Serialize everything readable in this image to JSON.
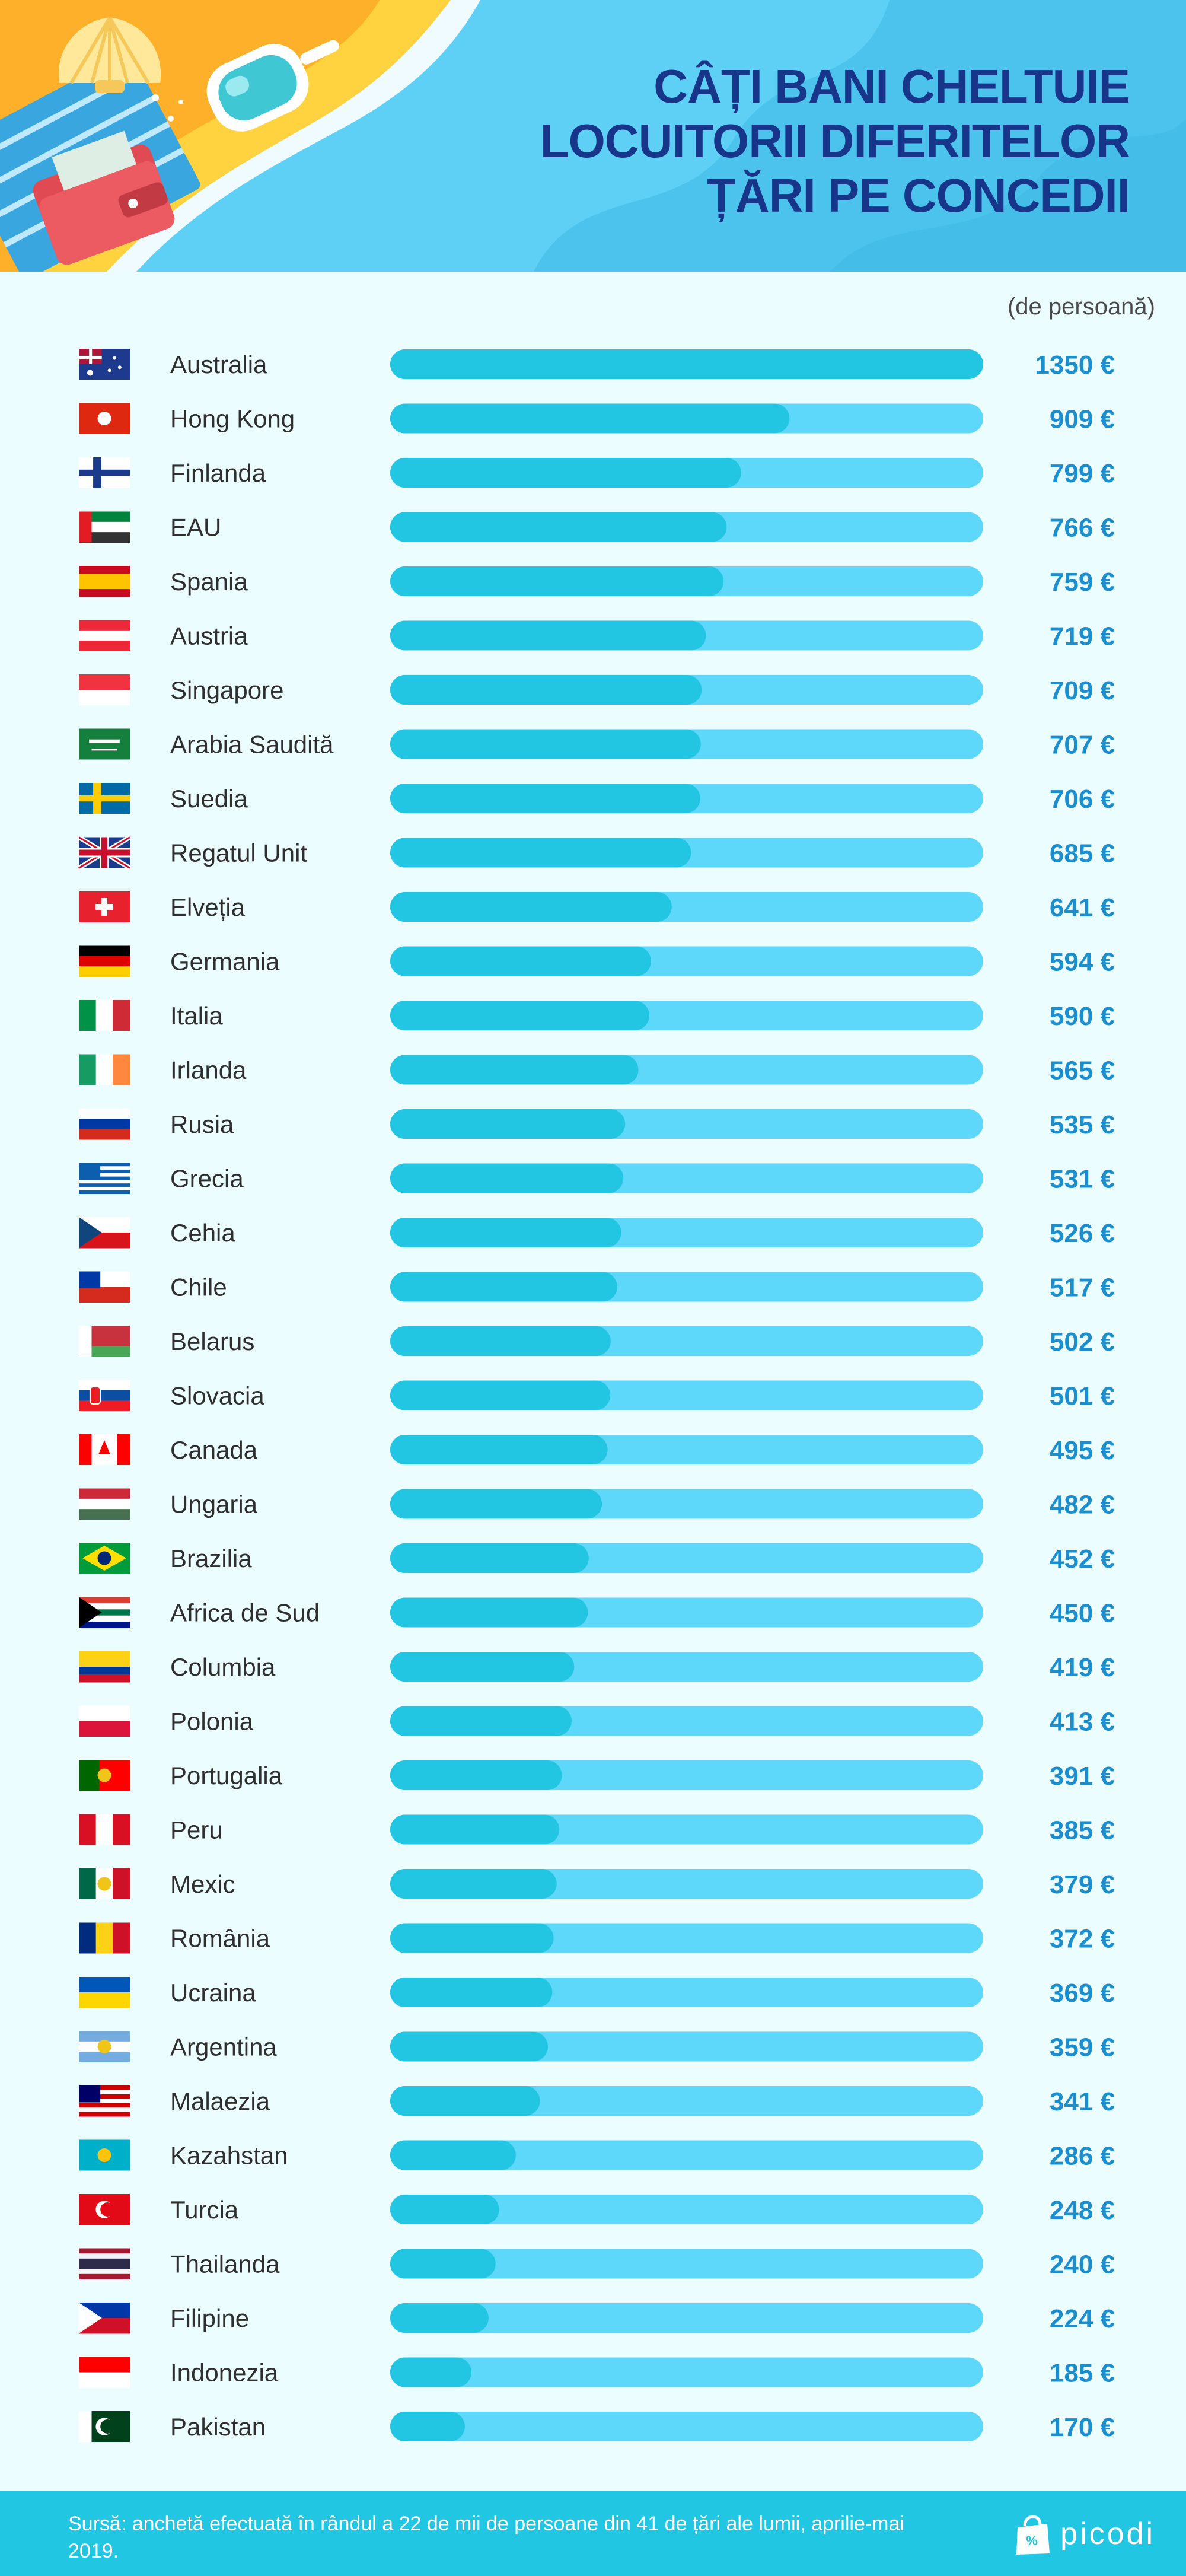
{
  "header": {
    "title_lines": [
      "CÂȚI BANI CHELTUIE",
      "LOCUITORII DIFERITELOR",
      "ȚĂRI PE CONCEDII"
    ]
  },
  "unit_label": "(de persoană)",
  "colors": {
    "bar_fill": "#23c6e2",
    "bar_track": "#5dd8fb",
    "value_text": "#1b8ed0",
    "label_text": "#2f2f2f",
    "title_text": "#17368a",
    "footer_bg": "#21c6e3"
  },
  "chart_data": {
    "type": "bar",
    "orientation": "horizontal",
    "title": "CÂȚI BANI CHELTUIE LOCUITORII DIFERITELOR ȚĂRI PE CONCEDII",
    "unit": "(de persoană)",
    "value_suffix": " €",
    "xlim": [
      0,
      1350
    ],
    "categories": [
      "Australia",
      "Hong Kong",
      "Finlanda",
      "EAU",
      "Spania",
      "Austria",
      "Singapore",
      "Arabia Saudită",
      "Suedia",
      "Regatul Unit",
      "Elveția",
      "Germania",
      "Italia",
      "Irlanda",
      "Rusia",
      "Grecia",
      "Cehia",
      "Chile",
      "Belarus",
      "Slovacia",
      "Canada",
      "Ungaria",
      "Brazilia",
      "Africa de Sud",
      "Columbia",
      "Polonia",
      "Portugalia",
      "Peru",
      "Mexic",
      "România",
      "Ucraina",
      "Argentina",
      "Malaezia",
      "Kazahstan",
      "Turcia",
      "Thailanda",
      "Filipine",
      "Indonezia",
      "Pakistan"
    ],
    "values": [
      1350,
      909,
      799,
      766,
      759,
      719,
      709,
      707,
      706,
      685,
      641,
      594,
      590,
      565,
      535,
      531,
      526,
      517,
      502,
      501,
      495,
      482,
      452,
      450,
      419,
      413,
      391,
      385,
      379,
      372,
      369,
      359,
      341,
      286,
      248,
      240,
      224,
      185,
      170
    ],
    "flag_icons": [
      "australia-flag-icon",
      "hong-kong-flag-icon",
      "finland-flag-icon",
      "uae-flag-icon",
      "spain-flag-icon",
      "austria-flag-icon",
      "singapore-flag-icon",
      "saudi-arabia-flag-icon",
      "sweden-flag-icon",
      "united-kingdom-flag-icon",
      "switzerland-flag-icon",
      "germany-flag-icon",
      "italy-flag-icon",
      "ireland-flag-icon",
      "russia-flag-icon",
      "greece-flag-icon",
      "czech-republic-flag-icon",
      "chile-flag-icon",
      "belarus-flag-icon",
      "slovakia-flag-icon",
      "canada-flag-icon",
      "hungary-flag-icon",
      "brazil-flag-icon",
      "south-africa-flag-icon",
      "colombia-flag-icon",
      "poland-flag-icon",
      "portugal-flag-icon",
      "peru-flag-icon",
      "mexico-flag-icon",
      "romania-flag-icon",
      "ukraine-flag-icon",
      "argentina-flag-icon",
      "malaysia-flag-icon",
      "kazakhstan-flag-icon",
      "turkey-flag-icon",
      "thailand-flag-icon",
      "philippines-flag-icon",
      "indonesia-flag-icon",
      "pakistan-flag-icon"
    ]
  },
  "footer": {
    "source": "Sursă: anchetă efectuată în rândul a 22 de mii de persoane din 41 de țări ale lumii, aprilie-mai 2019.",
    "brand": "picodi",
    "brand_icon": "picodi-bag-logo-icon"
  }
}
